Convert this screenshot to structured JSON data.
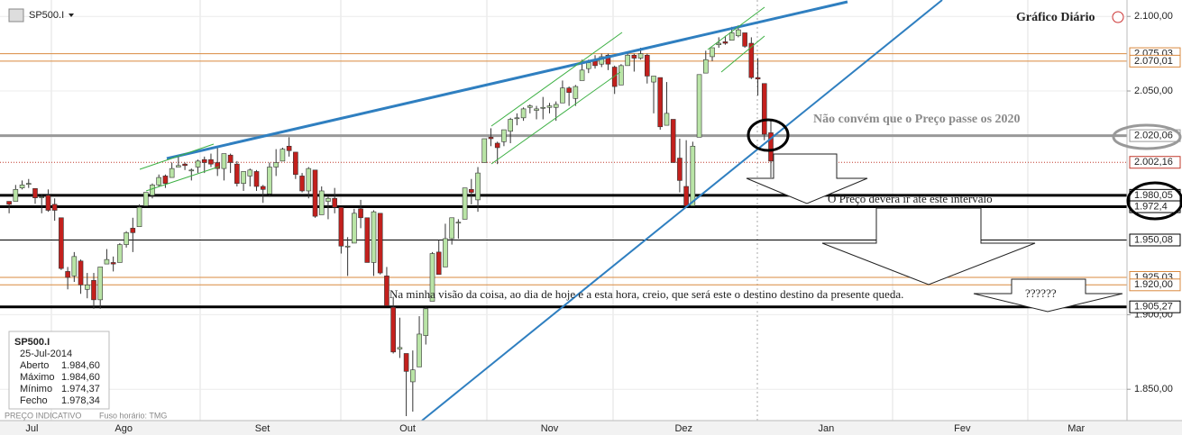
{
  "chart_data": {
    "type": "candlestick",
    "symbol": "SP500.I",
    "title": "Gráfico Diário",
    "footer": "PREÇO INDICATIVO",
    "timezone": "Fuso horário: TMG",
    "up_color": "#b9e4a6",
    "down_color": "#c3201d",
    "open": [
      1976,
      1976,
      1985,
      1988,
      1984.6,
      1979,
      1980,
      1974,
      1965,
      1929,
      1926,
      1936,
      1917,
      1923,
      1910,
      1934,
      1935,
      1935,
      1947,
      1958,
      1959,
      1973,
      1980,
      1987,
      1993,
      1992,
      1999,
      2001,
      1997,
      1999,
      2004,
      2004,
      2002,
      1998,
      2007,
      2001,
      1988,
      1993,
      1996,
      1986,
      1981,
      1999,
      2003,
      2013,
      2009,
      1993,
      1983,
      1997,
      1967,
      1976,
      1978,
      1972,
      1946,
      1948,
      1971,
      1965,
      1935,
      1968,
      1926,
      1905,
      1877,
      1874,
      1855,
      1865,
      1886,
      1909,
      1942,
      1932,
      1951,
      1962,
      1964,
      1984,
      1977,
      2002,
      2019,
      2015,
      2016,
      2023,
      2032,
      2032,
      2039,
      2037,
      2039,
      2039,
      2039,
      2042,
      2052,
      2045,
      2057,
      2065,
      2070,
      2068,
      2074,
      2066,
      2054,
      2067,
      2074,
      2072,
      2074,
      2056,
      2059,
      2027,
      2031,
      2005,
      1986,
      1973,
      2019,
      2062,
      2073,
      2081,
      2083,
      2084,
      2087,
      2089,
      2082,
      2059,
      2055,
      2022
    ],
    "high": [
      1976,
      1987,
      1990,
      1991,
      1984.6,
      1981,
      1984,
      1978,
      1965,
      1932,
      1942,
      1937,
      1928,
      1928,
      1932,
      1944,
      1939,
      1948,
      1956,
      1965,
      1974,
      1982,
      1988,
      1994,
      1994,
      2002,
      2006,
      2002,
      1998,
      2004,
      2006,
      2008,
      2012,
      2008,
      2008,
      2003,
      1996,
      1998,
      1997,
      1987,
      2002,
      2011,
      2012,
      2019,
      2009,
      1995,
      1999,
      1997,
      1986,
      1979,
      1985,
      1972,
      1952,
      1971,
      1977,
      1965,
      1970,
      1968,
      1932,
      1912,
      1898,
      1874,
      1876,
      1899,
      1905,
      1942,
      1950,
      1961,
      1965,
      1964,
      1985,
      1991,
      1999,
      2018,
      2025,
      2016,
      2024,
      2032,
      2035,
      2039,
      2041,
      2040,
      2046,
      2042,
      2043,
      2057,
      2053,
      2054,
      2071,
      2071,
      2074,
      2075,
      2075,
      2067,
      2068,
      2076,
      2075,
      2079,
      2075,
      2060,
      2059,
      2056,
      2031,
      2018,
      2017,
      2016,
      2061,
      2077,
      2079,
      2086,
      2087,
      2093,
      2094,
      2089,
      2086,
      2072,
      2055,
      2030
    ],
    "low": [
      1968,
      1976,
      1984,
      1985,
      1974.37,
      1968,
      1969,
      1963,
      1930,
      1917,
      1922,
      1914,
      1911,
      1904,
      1904,
      1934,
      1929,
      1935,
      1945,
      1942,
      1959,
      1973,
      1978,
      1986,
      1985,
      1992,
      1999,
      1997,
      1990,
      1995,
      1995,
      1999,
      1993,
      1990,
      1995,
      1986,
      1983,
      1986,
      1983,
      1975,
      1979,
      1993,
      2003,
      2006,
      1991,
      1982,
      1978,
      1965,
      1967,
      1964,
      1968,
      1941,
      1926,
      1948,
      1958,
      1935,
      1926,
      1927,
      1906,
      1874,
      1871,
      1832,
      1835,
      1865,
      1880,
      1909,
      1927,
      1932,
      1947,
      1951,
      1964,
      1974,
      1969,
      2002,
      2013,
      2001,
      2013,
      2015,
      2027,
      2030,
      2035,
      2031,
      2031,
      2035,
      2030,
      2042,
      2040,
      2040,
      2057,
      2062,
      2065,
      2066,
      2064,
      2048,
      2054,
      2067,
      2063,
      2071,
      2055,
      2035,
      2024,
      2027,
      2002,
      1982,
      1972,
      1973,
      2019,
      2062,
      2070,
      2079,
      2081,
      2084,
      2086,
      2079,
      2058,
      2047,
      2017,
      1992
    ],
    "close": [
      1974,
      1984,
      1987,
      1988,
      1978.34,
      1979,
      1970,
      1970,
      1931,
      1925,
      1939,
      1920,
      1920,
      1910,
      1932,
      1937,
      1934,
      1947,
      1955,
      1955,
      1972,
      1982,
      1987,
      1992,
      1988,
      1998,
      2000,
      2000,
      1997,
      2003,
      2002,
      2001,
      1998,
      2008,
      2002,
      1988,
      1996,
      1997,
      1986,
      1984,
      1999,
      2002,
      2011,
      2010,
      1994,
      1983,
      1998,
      1966,
      1983,
      1978,
      1972,
      1946,
      1946,
      1968,
      1965,
      1935,
      1969,
      1928,
      1906,
      1875,
      1878,
      1862,
      1863,
      1887,
      1904,
      1941,
      1927,
      1951,
      1965,
      1962,
      1985,
      1982,
      1995,
      2018,
      2018,
      2012,
      2024,
      2031,
      2032,
      2038,
      2040,
      2038,
      2039,
      2040,
      2041,
      2052,
      2049,
      2053,
      2064,
      2069,
      2067,
      2073,
      2068,
      2053,
      2067,
      2074,
      2072,
      2075,
      2060,
      2060,
      2026,
      2035,
      2002,
      1990,
      1973,
      2013,
      2061,
      2071,
      2079,
      2082,
      2082,
      2089,
      2091,
      2080,
      2059,
      2058,
      2021,
      2003
    ],
    "xlim": [
      -1.4,
      171.7
    ],
    "xticks": [
      {
        "value": 3.5,
        "label": "Jul"
      },
      {
        "value": 17.6,
        "label": "Ago"
      },
      {
        "value": 38.9,
        "label": "Set"
      },
      {
        "value": 61.2,
        "label": "Out"
      },
      {
        "value": 83,
        "label": "Nov"
      },
      {
        "value": 103.6,
        "label": "Dez"
      },
      {
        "value": 125.5,
        "label": "Jan"
      },
      {
        "value": 146.4,
        "label": "Fev"
      },
      {
        "value": 163.9,
        "label": "Mar"
      }
    ],
    "ylim": [
      1829,
      2111
    ],
    "yticks": [
      {
        "value": 2100,
        "label": "2.100,00"
      },
      {
        "value": 2050,
        "label": "2.050,00"
      },
      {
        "value": 1900,
        "label": "1.900,00"
      },
      {
        "value": 1850,
        "label": "1.850,00"
      }
    ],
    "levels": [
      {
        "value": 2075.03,
        "label": "2.075,03",
        "color": "#d9893f",
        "style": "thin"
      },
      {
        "value": 2070.01,
        "label": "2.070,01",
        "color": "#d9893f",
        "style": "thin"
      },
      {
        "value": 2020.06,
        "label": "2.020,06",
        "color": "#999999",
        "style": "thick"
      },
      {
        "value": 2002.16,
        "label": "2.002,16",
        "color": "#c0392b",
        "style": "dotted"
      },
      {
        "value": 1980.05,
        "label": "1.980,05",
        "color": "#000000",
        "style": "thick"
      },
      {
        "value": 1972.4,
        "label": "1.972,4",
        "color": "#000000",
        "style": "thick"
      },
      {
        "value": 1950.08,
        "label": "1.950,08",
        "color": "#000000",
        "style": "thin"
      },
      {
        "value": 1925.03,
        "label": "1.925,03",
        "color": "#d9893f",
        "style": "thin"
      },
      {
        "value": 1920.0,
        "label": "1.920,00",
        "color": "#d9893f",
        "style": "thin"
      },
      {
        "value": 1905.27,
        "label": "1.905,27",
        "color": "#000000",
        "style": "thick"
      }
    ],
    "annotations": [
      "Não convém que o Preço passe os 2020",
      "O Preço deverá ir até este intervalo",
      "Na minha visão da coisa, ao dia de hoje e a esta hora, creio, que será este o destino destino da presente queda.",
      "??????"
    ],
    "info": {
      "symbol": "SP500.I",
      "date": "25-Jul-2014",
      "rows": [
        [
          "Aberto",
          "1.984,60"
        ],
        [
          "Máximo",
          "1.984,60"
        ],
        [
          "Mínimo",
          "1.974,37"
        ],
        [
          "Fecho",
          "1.978,34"
        ]
      ]
    }
  }
}
